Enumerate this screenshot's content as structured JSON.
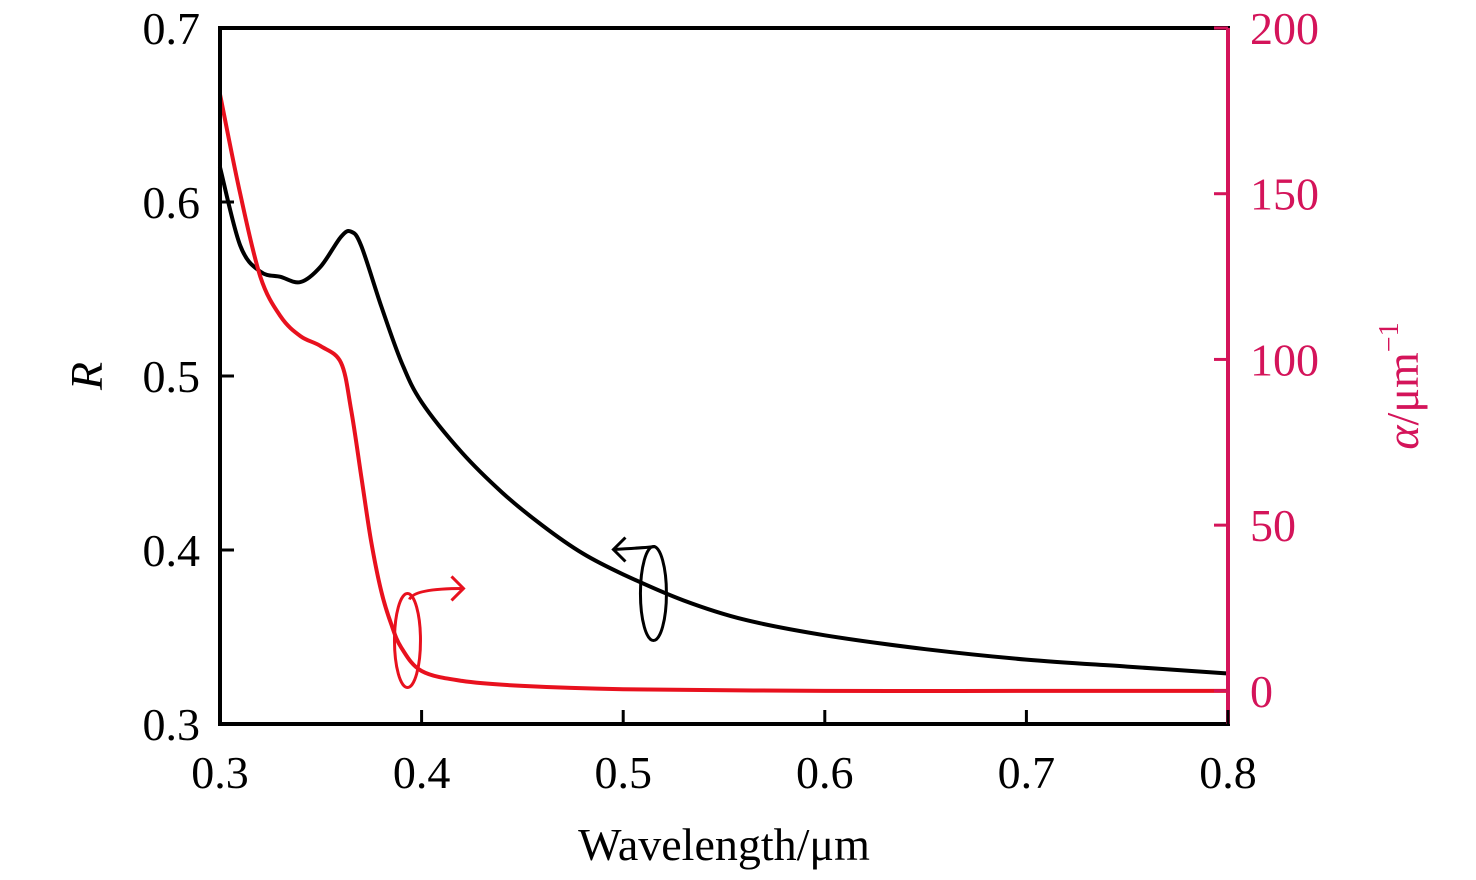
{
  "chart_data": {
    "type": "line",
    "xlabel": "Wavelength/μm",
    "ylabel_left": "R",
    "ylabel_right_symbol": "α",
    "ylabel_right_unit": "/μm",
    "ylabel_right_exp": "−1",
    "xlim": [
      0.3,
      0.8
    ],
    "ylim_left": [
      0.3,
      0.7
    ],
    "ylim_right": [
      -10,
      200
    ],
    "x_ticks": [
      "0.3",
      "0.4",
      "0.5",
      "0.6",
      "0.7",
      "0.8"
    ],
    "y_left_ticks": [
      "0.3",
      "0.4",
      "0.5",
      "0.6",
      "0.7"
    ],
    "y_right_ticks": [
      "0",
      "50",
      "100",
      "150",
      "200"
    ],
    "grid": false,
    "colors": {
      "R": "#000000",
      "alpha": "#e8111e",
      "right_axis": "#d4145a"
    },
    "series": [
      {
        "key": "R",
        "axis": "left",
        "x": [
          0.3,
          0.31,
          0.32,
          0.33,
          0.34,
          0.35,
          0.36,
          0.365,
          0.37,
          0.38,
          0.39,
          0.4,
          0.42,
          0.44,
          0.46,
          0.48,
          0.5,
          0.53,
          0.56,
          0.6,
          0.65,
          0.7,
          0.75,
          0.8
        ],
        "y": [
          0.62,
          0.575,
          0.56,
          0.557,
          0.554,
          0.563,
          0.58,
          0.583,
          0.575,
          0.54,
          0.508,
          0.485,
          0.456,
          0.433,
          0.414,
          0.398,
          0.386,
          0.371,
          0.36,
          0.351,
          0.343,
          0.337,
          0.333,
          0.329
        ]
      },
      {
        "key": "alpha",
        "axis": "right",
        "x": [
          0.3,
          0.31,
          0.32,
          0.33,
          0.34,
          0.35,
          0.36,
          0.365,
          0.37,
          0.375,
          0.38,
          0.385,
          0.39,
          0.4,
          0.42,
          0.45,
          0.5,
          0.6,
          0.7,
          0.8
        ],
        "y": [
          180,
          150,
          125,
          113,
          107,
          104,
          99,
          85,
          65,
          45,
          30,
          20,
          13,
          6,
          3,
          1.5,
          0.5,
          0,
          0,
          0
        ]
      }
    ],
    "annotations": [
      {
        "series": "R",
        "points_to": "left-axis",
        "x": 0.515,
        "y_left": 0.375
      },
      {
        "series": "alpha",
        "points_to": "right-axis",
        "x": 0.393,
        "y_left": 0.348
      }
    ]
  }
}
